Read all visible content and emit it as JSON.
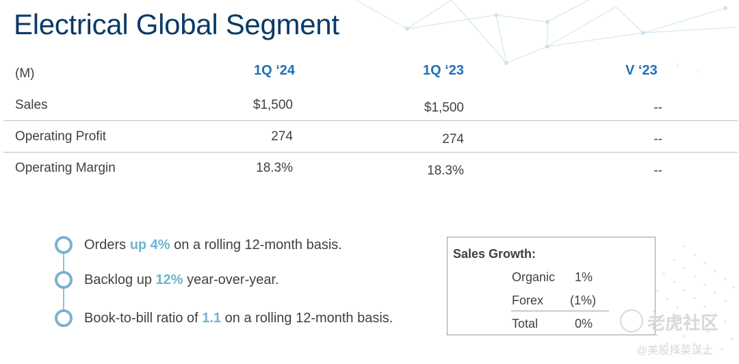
{
  "title": "Electrical Global Segment",
  "table": {
    "unit_label": "(M)",
    "columns": [
      "1Q ‘24",
      "1Q ‘23",
      "V ‘23"
    ],
    "rows": [
      {
        "label": "Sales",
        "values": [
          "$1,500",
          "$1,500",
          "--"
        ]
      },
      {
        "label": "Operating Profit",
        "values": [
          "274",
          "274",
          "--"
        ]
      },
      {
        "label": "Operating Margin",
        "values": [
          "18.3%",
          "18.3%",
          "--"
        ]
      }
    ]
  },
  "bullets": [
    {
      "pre": "Orders ",
      "highlight": "up 4%",
      "post": " on a rolling 12-month basis."
    },
    {
      "pre": "Backlog up ",
      "highlight": "12%",
      "post": " year-over-year."
    },
    {
      "pre": "Book-to-bill ratio of ",
      "highlight": "1.1",
      "post": " on a rolling 12-month basis."
    }
  ],
  "sales_growth": {
    "title": "Sales Growth:",
    "rows": [
      {
        "label": "Organic",
        "value": "1%"
      },
      {
        "label": "Forex",
        "value": "(1%)"
      },
      {
        "label": "Total",
        "value": "0%"
      }
    ]
  },
  "watermark": {
    "brand": "老虎社区",
    "handle": "@美股择菜谋士"
  },
  "colors": {
    "title": "#0b3a66",
    "header": "#1f6fb6",
    "highlight": "#6db5cf",
    "bullet": "#7ab2cc"
  }
}
